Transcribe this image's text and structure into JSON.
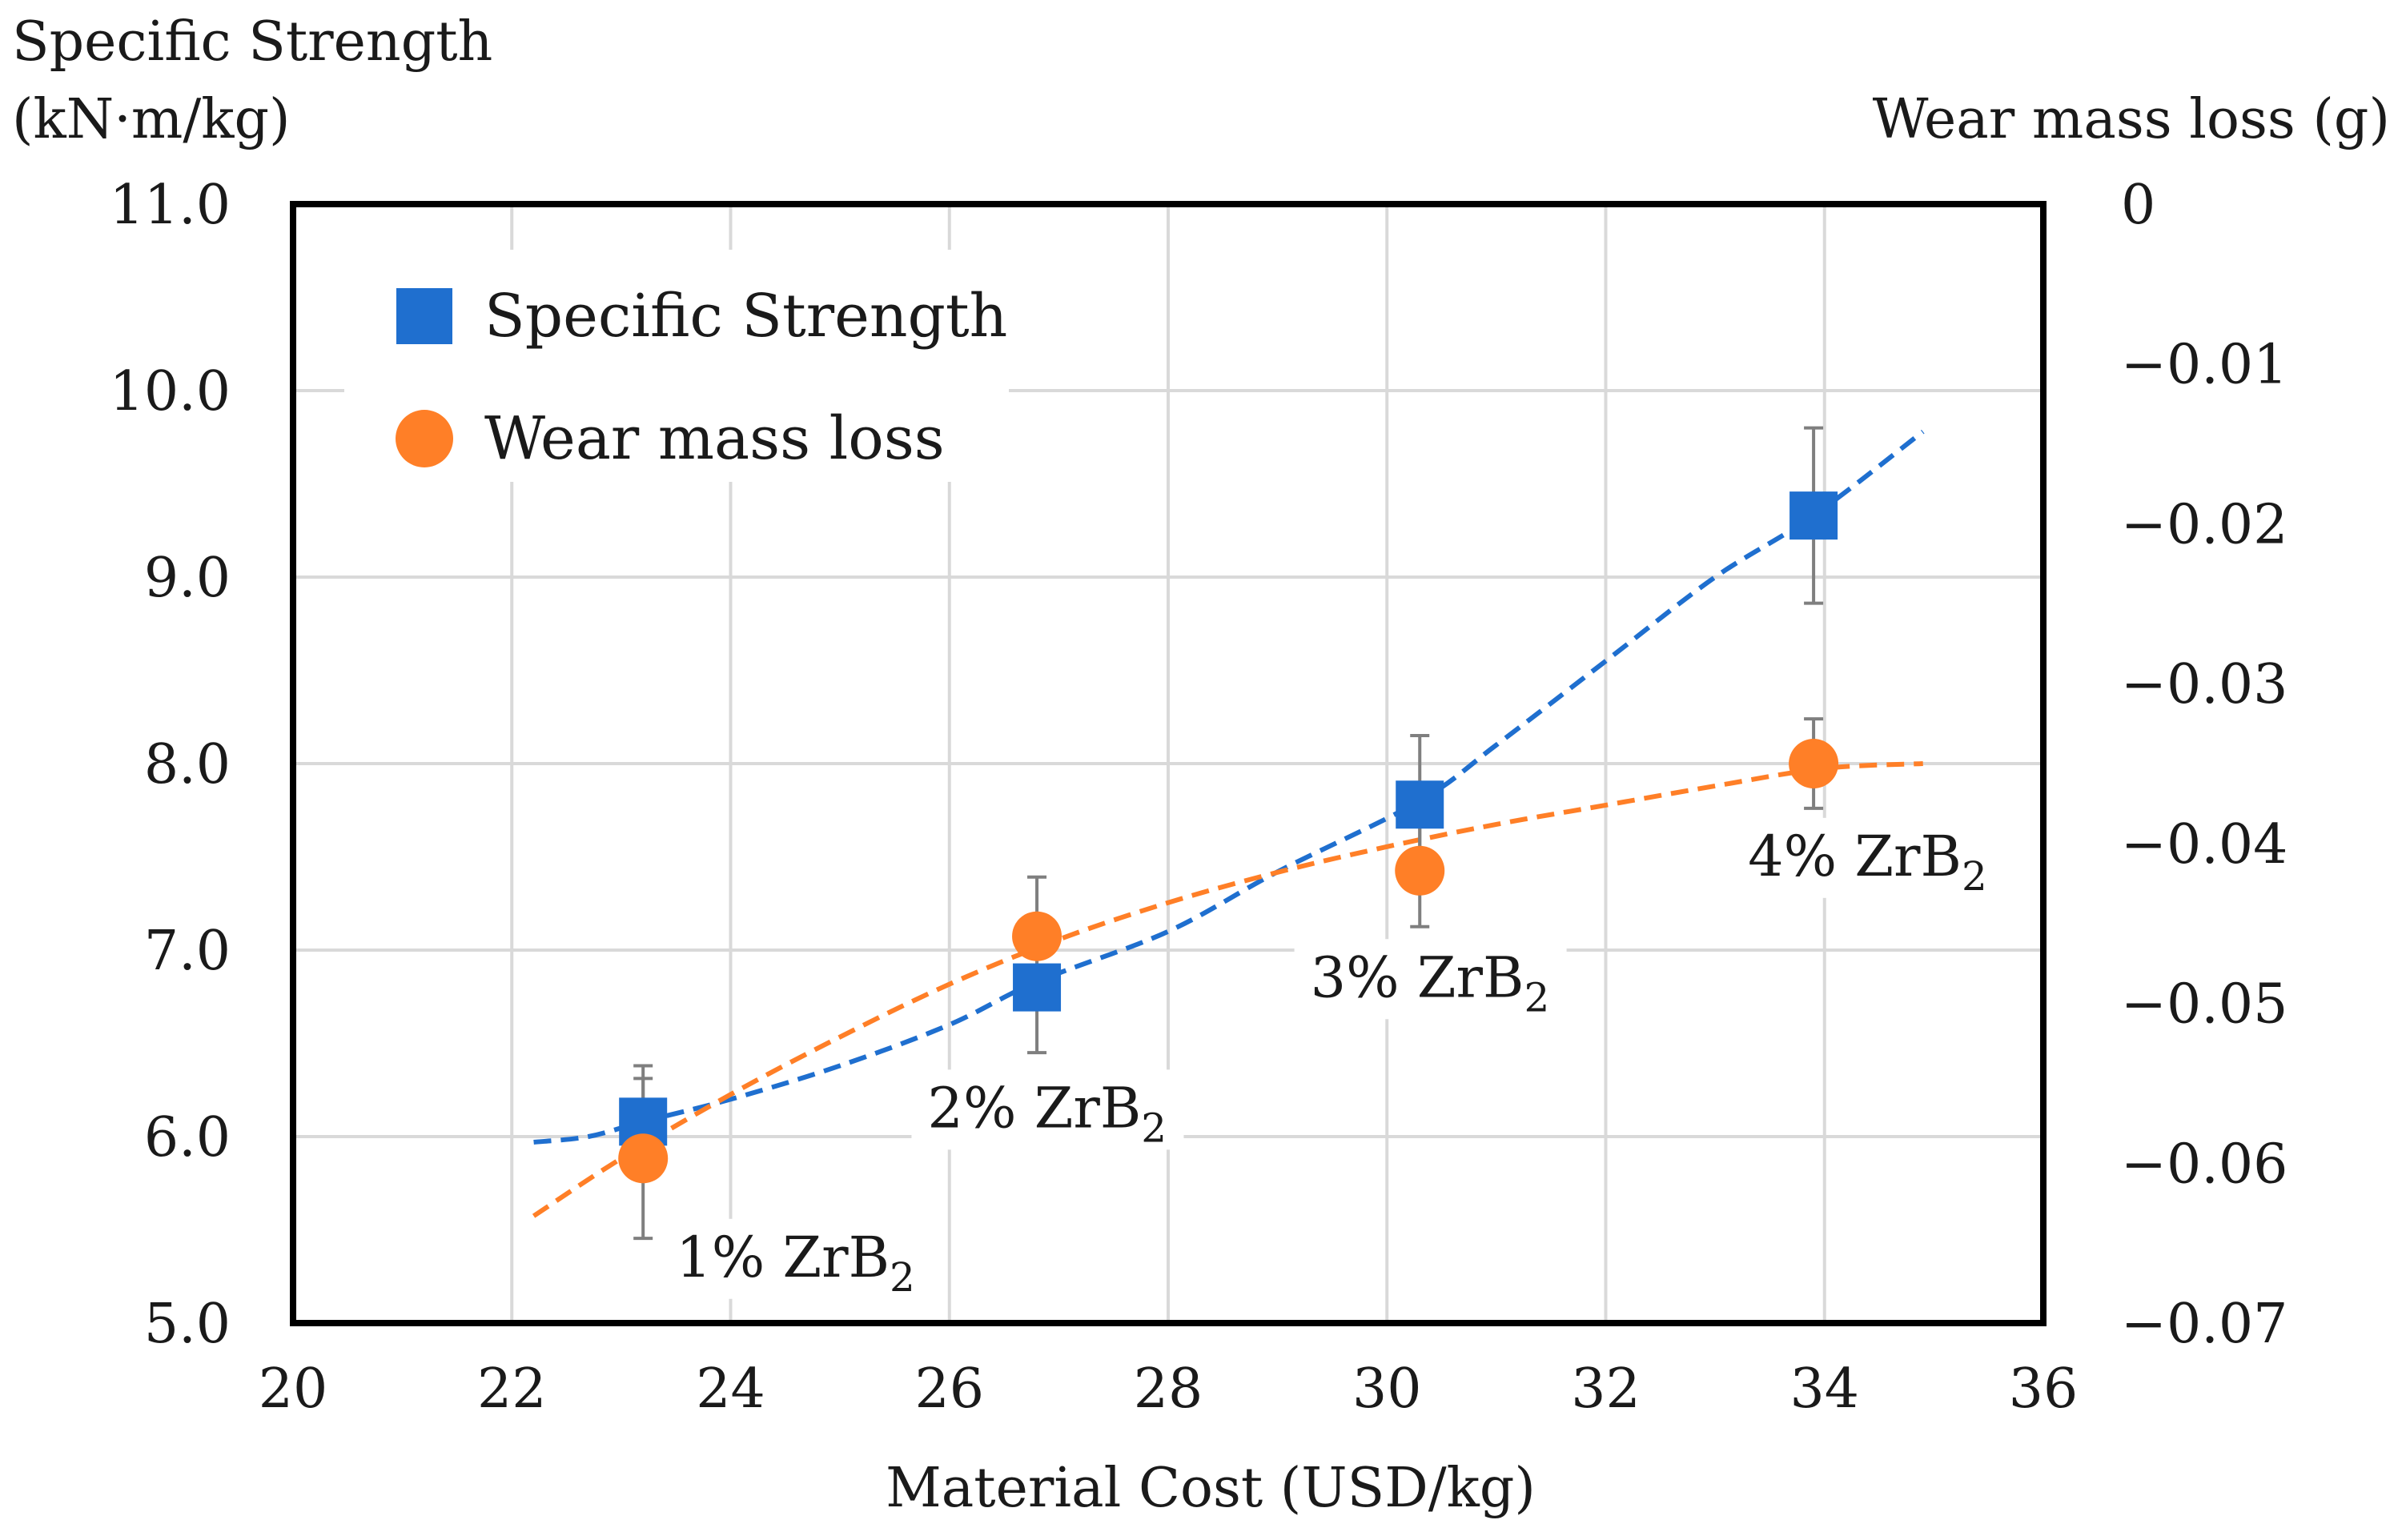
{
  "chart_data": {
    "type": "scatter",
    "xlabel": "Material Cost (USD/kg)",
    "xlim": [
      20,
      36
    ],
    "xticks": [
      "20",
      "22",
      "24",
      "26",
      "28",
      "30",
      "32",
      "34",
      "36"
    ],
    "y_left": {
      "label_line1": "Specific Strength",
      "label_line2": "(kN·m/kg)",
      "lim": [
        5.0,
        11.0
      ],
      "ticks": [
        "5.0",
        "6.0",
        "7.0",
        "8.0",
        "9.0",
        "10.0",
        "11.0"
      ]
    },
    "y_right": {
      "label": "Wear mass loss (g)",
      "lim": [
        -0.07,
        0
      ],
      "ticks": [
        "0",
        "−0.01",
        "−0.02",
        "−0.03",
        "−0.04",
        "−0.05",
        "−0.06",
        "−0.07"
      ]
    },
    "grid": true,
    "legend_position": "top-left",
    "series": [
      {
        "name": "Specific Strength",
        "axis": "left",
        "marker": "square",
        "color": "#1f6fcf",
        "x": [
          23.2,
          26.8,
          30.3,
          33.9
        ],
        "y": [
          6.08,
          6.8,
          7.78,
          9.33
        ],
        "err": [
          0.3,
          0.35,
          0.37,
          0.47
        ],
        "trend_x": [
          22.2,
          22.7,
          23.2,
          24,
          25,
          26,
          26.8,
          28,
          29,
          30.3,
          31,
          32,
          33,
          33.9,
          34.9
        ],
        "trend_y": [
          5.97,
          6.0,
          6.08,
          6.2,
          6.38,
          6.6,
          6.83,
          7.1,
          7.42,
          7.8,
          8.1,
          8.55,
          9.0,
          9.33,
          9.78
        ]
      },
      {
        "name": "Wear mass loss",
        "axis": "right",
        "marker": "circle",
        "color": "#ff7f27",
        "x": [
          23.2,
          26.8,
          30.3,
          33.9
        ],
        "y": [
          -0.0597,
          -0.0458,
          -0.0417,
          -0.035
        ],
        "err": [
          0.005,
          0.0037,
          0.0035,
          0.0028
        ],
        "trend_x": [
          22.2,
          23,
          24,
          25,
          26,
          27,
          28,
          29,
          30,
          31,
          32,
          33,
          34,
          34.9
        ],
        "trend_y": [
          -0.0633,
          -0.0597,
          -0.0557,
          -0.0521,
          -0.0488,
          -0.046,
          -0.0437,
          -0.0418,
          -0.0402,
          -0.0388,
          -0.0376,
          -0.0364,
          -0.0353,
          -0.035
        ]
      }
    ],
    "annotations": [
      {
        "base": "1% ZrB",
        "sub": "2",
        "x": 23.5,
        "y": 5.25
      },
      {
        "base": "2% ZrB",
        "sub": "2",
        "x": 25.8,
        "y": 6.05
      },
      {
        "base": "3% ZrB",
        "sub": "2",
        "x": 29.3,
        "y": 6.75
      },
      {
        "base": "4% ZrB",
        "sub": "2",
        "x": 33.3,
        "y": 7.4
      }
    ]
  }
}
